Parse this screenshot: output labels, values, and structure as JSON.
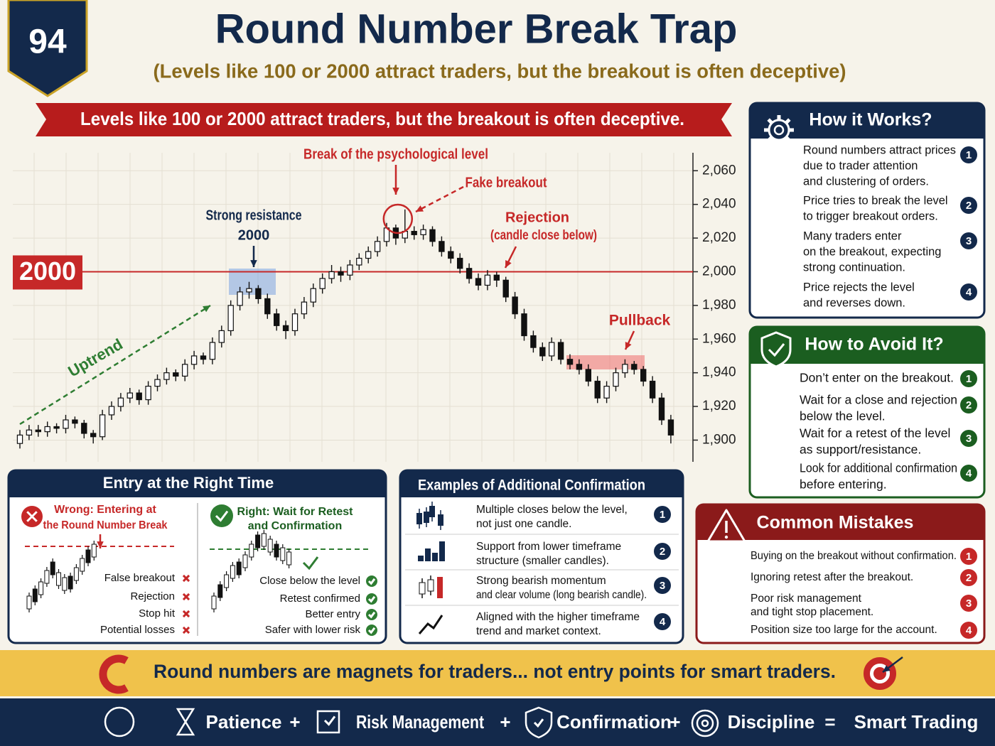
{
  "badge": "94",
  "header": {
    "title": "Round Number Break Trap",
    "subtitle": "(Levels like 100 or 2000 attract traders, but the breakout is often deceptive)"
  },
  "banner": "Levels like 100 or 2000 attract traders, but the breakout is often deceptive.",
  "price_chart": {
    "type": "candlestick",
    "ylim": [
      1885,
      2077
    ],
    "yticks": [
      {
        "value": 1900,
        "label": "1,900"
      },
      {
        "value": 1920,
        "label": "1,920"
      },
      {
        "value": 1940,
        "label": "1,940"
      },
      {
        "value": 1960,
        "label": "1,960"
      },
      {
        "value": 1980,
        "label": "1,980"
      },
      {
        "value": 2000,
        "label": "2,000"
      },
      {
        "value": 2020,
        "label": "2,020"
      },
      {
        "value": 2040,
        "label": "2,040"
      },
      {
        "value": 2060,
        "label": "2,060"
      }
    ],
    "grid": true,
    "level": 2000,
    "candles": [
      [
        1898,
        1906,
        1895,
        1903
      ],
      [
        1903,
        1909,
        1900,
        1906
      ],
      [
        1906,
        1909,
        1902,
        1905
      ],
      [
        1905,
        1911,
        1902,
        1908
      ],
      [
        1908,
        1910,
        1904,
        1907
      ],
      [
        1907,
        1915,
        1904,
        1912
      ],
      [
        1912,
        1914,
        1907,
        1910
      ],
      [
        1910,
        1912,
        1901,
        1904
      ],
      [
        1904,
        1906,
        1898,
        1902
      ],
      [
        1902,
        1918,
        1900,
        1915
      ],
      [
        1915,
        1923,
        1912,
        1920
      ],
      [
        1920,
        1928,
        1917,
        1925
      ],
      [
        1925,
        1931,
        1922,
        1928
      ],
      [
        1928,
        1930,
        1921,
        1924
      ],
      [
        1924,
        1935,
        1921,
        1932
      ],
      [
        1932,
        1939,
        1929,
        1936
      ],
      [
        1936,
        1943,
        1933,
        1940
      ],
      [
        1940,
        1942,
        1935,
        1938
      ],
      [
        1938,
        1948,
        1935,
        1945
      ],
      [
        1945,
        1953,
        1942,
        1950
      ],
      [
        1950,
        1952,
        1945,
        1948
      ],
      [
        1948,
        1961,
        1945,
        1958
      ],
      [
        1958,
        1968,
        1955,
        1965
      ],
      [
        1965,
        1983,
        1962,
        1980
      ],
      [
        1980,
        1991,
        1977,
        1988
      ],
      [
        1988,
        1994,
        1984,
        1990
      ],
      [
        1990,
        1992,
        1981,
        1984
      ],
      [
        1984,
        1987,
        1972,
        1975
      ],
      [
        1975,
        1978,
        1965,
        1968
      ],
      [
        1968,
        1971,
        1960,
        1965
      ],
      [
        1965,
        1978,
        1962,
        1975
      ],
      [
        1975,
        1985,
        1972,
        1982
      ],
      [
        1982,
        1993,
        1979,
        1990
      ],
      [
        1990,
        1999,
        1987,
        1996
      ],
      [
        1996,
        2004,
        1993,
        2000
      ],
      [
        2000,
        2003,
        1994,
        1998
      ],
      [
        1998,
        2007,
        1995,
        2004
      ],
      [
        2004,
        2011,
        2001,
        2008
      ],
      [
        2008,
        2015,
        2005,
        2012
      ],
      [
        2012,
        2021,
        2009,
        2018
      ],
      [
        2018,
        2029,
        2015,
        2026
      ],
      [
        2026,
        2028,
        2016,
        2020
      ],
      [
        2020,
        2037,
        2017,
        2024
      ],
      [
        2024,
        2027,
        2019,
        2022
      ],
      [
        2022,
        2028,
        2019,
        2025
      ],
      [
        2025,
        2027,
        2015,
        2018
      ],
      [
        2018,
        2021,
        2009,
        2012
      ],
      [
        2012,
        2015,
        2005,
        2008
      ],
      [
        2008,
        2011,
        1999,
        2002
      ],
      [
        2002,
        2005,
        1993,
        1996
      ],
      [
        1996,
        1999,
        1989,
        1992
      ],
      [
        1992,
        2001,
        1989,
        1998
      ],
      [
        1998,
        2000,
        1991,
        1995
      ],
      [
        1995,
        1997,
        1982,
        1985
      ],
      [
        1985,
        1988,
        1972,
        1975
      ],
      [
        1975,
        1978,
        1959,
        1962
      ],
      [
        1962,
        1965,
        1952,
        1955
      ],
      [
        1955,
        1958,
        1947,
        1950
      ],
      [
        1950,
        1961,
        1947,
        1958
      ],
      [
        1958,
        1960,
        1945,
        1948
      ],
      [
        1948,
        1951,
        1942,
        1945
      ],
      [
        1945,
        1948,
        1939,
        1942
      ],
      [
        1942,
        1945,
        1932,
        1935
      ],
      [
        1935,
        1938,
        1922,
        1925
      ],
      [
        1925,
        1935,
        1922,
        1932
      ],
      [
        1932,
        1943,
        1929,
        1940
      ],
      [
        1940,
        1948,
        1937,
        1945
      ],
      [
        1945,
        1947,
        1939,
        1942
      ],
      [
        1942,
        1944,
        1932,
        1935
      ],
      [
        1935,
        1938,
        1922,
        1925
      ],
      [
        1925,
        1928,
        1909,
        1912
      ],
      [
        1912,
        1915,
        1898,
        1903
      ]
    ],
    "annotations": {
      "break": "Break of the psychological level",
      "fake": "Fake breakout",
      "resistance": [
        "Strong resistance",
        "2000"
      ],
      "rejection": [
        "Rejection",
        "(candle close below)"
      ],
      "pullback": "Pullback",
      "uptrend": "Uptrend"
    }
  },
  "how_it_works": {
    "title": "How it Works?",
    "items": [
      {
        "num": "1",
        "lines": [
          "Round numbers attract prices",
          "due to trader attention",
          "and clustering of orders."
        ]
      },
      {
        "num": "2",
        "lines": [
          "Price tries to break the level",
          "to trigger breakout orders."
        ]
      },
      {
        "num": "3",
        "lines": [
          "Many traders enter",
          "on the breakout, expecting",
          "strong continuation."
        ]
      },
      {
        "num": "4",
        "lines": [
          "Price rejects the level",
          "and reverses down."
        ]
      }
    ]
  },
  "how_to_avoid": {
    "title": "How to Avoid It?",
    "items": [
      {
        "num": "1",
        "lines": [
          "Don’t enter on the breakout."
        ]
      },
      {
        "num": "2",
        "lines": [
          "Wait for a close and rejection",
          "below the level."
        ]
      },
      {
        "num": "3",
        "lines": [
          "Wait for a retest of the level",
          "as support/resistance."
        ]
      },
      {
        "num": "4",
        "lines": [
          "Look for additional confirmation",
          "before entering."
        ]
      }
    ]
  },
  "common_mistakes": {
    "title": "Common Mistakes",
    "items": [
      {
        "num": "1",
        "lines": [
          "Buying on the breakout without confirmation."
        ]
      },
      {
        "num": "2",
        "lines": [
          "Ignoring retest after the breakout."
        ]
      },
      {
        "num": "3",
        "lines": [
          "Poor risk management",
          "and tight stop placement."
        ]
      },
      {
        "num": "4",
        "lines": [
          "Position size too large for the account."
        ]
      }
    ]
  },
  "entry_timing": {
    "title": "Entry at the Right Time",
    "wrong": {
      "heading": [
        "Wrong: Entering at",
        "the Round Number Break"
      ],
      "points": [
        "False breakout",
        "Rejection",
        "Stop hit",
        "Potential losses"
      ]
    },
    "right": {
      "heading": [
        "Right: Wait for Retest",
        "and Confirmation"
      ],
      "points": [
        "Close below the level",
        "Retest confirmed",
        "Better entry",
        "Safer with lower risk"
      ]
    }
  },
  "confirmation": {
    "title": "Examples of Additional Confirmation",
    "items": [
      {
        "num": "1",
        "lines": [
          "Multiple closes below the level,",
          "not just one candle."
        ]
      },
      {
        "num": "2",
        "lines": [
          "Support from lower timeframe",
          "structure (smaller candles)."
        ]
      },
      {
        "num": "3",
        "lines": [
          "Strong bearish momentum",
          "and clear volume (long bearish candle)."
        ]
      },
      {
        "num": "4",
        "lines": [
          "Aligned with the higher timeframe",
          "trend and market context."
        ]
      }
    ]
  },
  "footer_tip": "Round numbers are magnets for traders... not entry points for smart traders.",
  "formula": [
    "Patience",
    "+",
    "Risk Management",
    "+",
    "Confirmation",
    "+",
    "Discipline",
    "=",
    "Smart Trading"
  ]
}
